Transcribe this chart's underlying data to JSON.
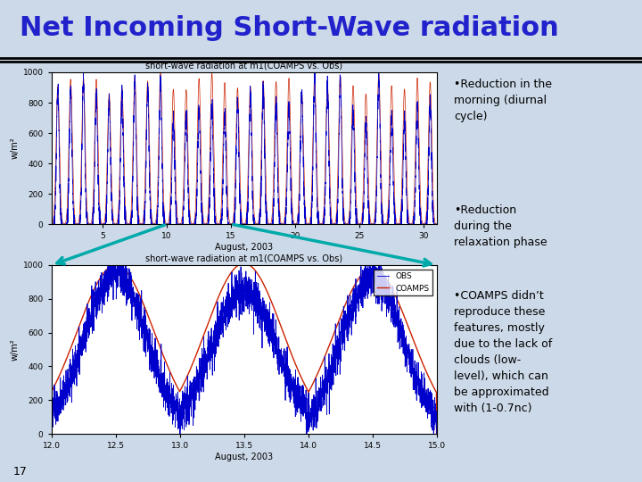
{
  "title": "Net Incoming Short-Wave radiation",
  "title_color": "#2222cc",
  "title_fontsize": 22,
  "background_color": "#ccd9e8",
  "plot_bg": "#ffffff",
  "subtitle1": "short-wave radiation at m1(COAMPS vs. Obs)",
  "subtitle2": "short-wave radiation at m1(COAMPS vs. Obs)",
  "ylabel": "w/m²",
  "xlabel": "August, 2003",
  "coamps_color": "#cc2200",
  "obs_color": "#0000cc",
  "arrow_color": "#00aaaa",
  "slide_number": "17",
  "plot1_xlim": [
    1,
    31
  ],
  "plot1_xticks": [
    5,
    10,
    15,
    20,
    25,
    30
  ],
  "plot1_ylim": [
    0,
    1000
  ],
  "plot1_yticks": [
    0,
    200,
    400,
    600,
    800,
    1000
  ],
  "plot2_xlim": [
    12,
    15
  ],
  "plot2_xticks": [
    12,
    12.5,
    13,
    13.5,
    14,
    14.5,
    15
  ],
  "plot2_ylim": [
    0,
    1000
  ],
  "plot2_yticks": [
    0,
    200,
    400,
    600,
    800,
    1000
  ],
  "bullet1": "•Reduction in the\nmorning (diurnal\ncycle)",
  "bullet2": "•Reduction\nduring the\nrelaxation phase",
  "bullet3": "•COAMPS didn’t\nreproduce these\nfeatures, mostly\ndue to the lack of\nclouds (low-\nlevel), which can\nbe approximated\nwith (1-0.7nᴄ)"
}
